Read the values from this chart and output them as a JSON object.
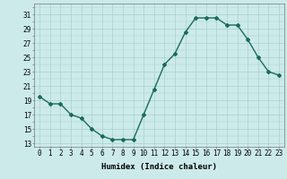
{
  "x": [
    0,
    1,
    2,
    3,
    4,
    5,
    6,
    7,
    8,
    9,
    10,
    11,
    12,
    13,
    14,
    15,
    16,
    17,
    18,
    19,
    20,
    21,
    22,
    23
  ],
  "y": [
    19.5,
    18.5,
    18.5,
    17.0,
    16.5,
    15.0,
    14.0,
    13.5,
    13.5,
    13.5,
    17.0,
    20.5,
    24.0,
    25.5,
    28.5,
    30.5,
    30.5,
    30.5,
    29.5,
    29.5,
    27.5,
    25.0,
    23.0,
    22.5
  ],
  "line_color": "#1a6b5a",
  "marker": "D",
  "marker_size": 2,
  "bg_color": "#cceaea",
  "grid_color": "#aacfcf",
  "xlabel": "Humidex (Indice chaleur)",
  "xlabel_fontsize": 6.5,
  "yticks": [
    13,
    15,
    17,
    19,
    21,
    23,
    25,
    27,
    29,
    31
  ],
  "xticks": [
    0,
    1,
    2,
    3,
    4,
    5,
    6,
    7,
    8,
    9,
    10,
    11,
    12,
    13,
    14,
    15,
    16,
    17,
    18,
    19,
    20,
    21,
    22,
    23
  ],
  "ylim": [
    12.5,
    32.5
  ],
  "xlim": [
    -0.5,
    23.5
  ],
  "tick_fontsize": 5.5,
  "line_width": 1.0
}
